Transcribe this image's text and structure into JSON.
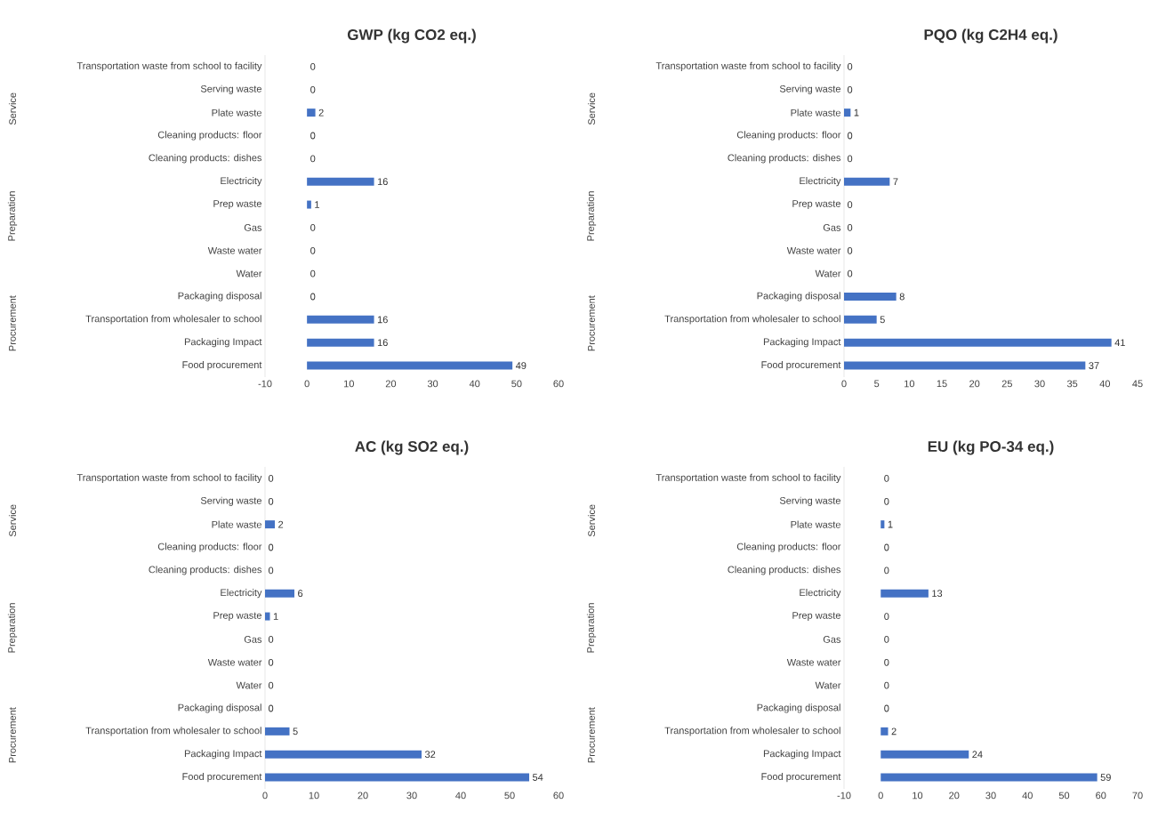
{
  "chart_data": [
    {
      "type": "bar",
      "orientation": "horizontal",
      "title": "GWP (kg CO2 eq.)",
      "categories": [
        "Transportation waste from school to facility",
        "Serving waste",
        "Plate waste",
        "Cleaning products: floor",
        "Cleaning products: dishes",
        "Electricity",
        "Prep waste",
        "Gas",
        "Waste water",
        "Water",
        "Packaging disposal",
        "Transportation from wholesaler to school",
        "Packaging Impact",
        "Food procurement"
      ],
      "values": [
        0,
        0,
        2,
        0,
        0,
        16,
        1,
        0,
        0,
        0,
        0,
        16,
        16,
        49
      ],
      "color": "#4472c4",
      "data_labels": true,
      "xlim": [
        -10,
        60
      ],
      "xticks": [
        -10,
        0,
        10,
        20,
        30,
        40,
        50,
        60
      ],
      "grid": false,
      "annotations": [
        "Service",
        "Preparation",
        "Procurement"
      ]
    },
    {
      "type": "bar",
      "orientation": "horizontal",
      "title": "PQO (kg C2H4 eq.)",
      "categories": [
        "Transportation waste from school to facility",
        "Serving waste",
        "Plate waste",
        "Cleaning products: floor",
        "Cleaning products: dishes",
        "Electricity",
        "Prep waste",
        "Gas",
        "Waste water",
        "Water",
        "Packaging disposal",
        "Transportation from wholesaler to school",
        "Packaging Impact",
        "Food procurement"
      ],
      "values": [
        0,
        0,
        1,
        0,
        0,
        7,
        0,
        0,
        0,
        0,
        8,
        5,
        41,
        37
      ],
      "color": "#4472c4",
      "data_labels": true,
      "xlim": [
        0,
        45
      ],
      "xticks": [
        0,
        5,
        10,
        15,
        20,
        25,
        30,
        35,
        40,
        45
      ],
      "grid": false,
      "annotations": [
        "Service",
        "Preparation",
        "Procurement"
      ]
    },
    {
      "type": "bar",
      "orientation": "horizontal",
      "title": "AC (kg SO2 eq.)",
      "categories": [
        "Transportation waste from school to facility",
        "Serving waste",
        "Plate waste",
        "Cleaning products: floor",
        "Cleaning products: dishes",
        "Electricity",
        "Prep waste",
        "Gas",
        "Waste water",
        "Water",
        "Packaging disposal",
        "Transportation from wholesaler to school",
        "Packaging Impact",
        "Food procurement"
      ],
      "values": [
        0,
        0,
        2,
        0,
        0,
        6,
        1,
        0,
        0,
        0,
        0,
        5,
        32,
        54
      ],
      "color": "#4472c4",
      "data_labels": true,
      "xlim": [
        0,
        60
      ],
      "xticks": [
        0,
        10,
        20,
        30,
        40,
        50,
        60
      ],
      "grid": false,
      "annotations": [
        "Service",
        "Preparation",
        "Procurement"
      ]
    },
    {
      "type": "bar",
      "orientation": "horizontal",
      "title": "EU (kg PO-34 eq.)",
      "categories": [
        "Transportation waste from school to facility",
        "Serving waste",
        "Plate waste",
        "Cleaning products: floor",
        "Cleaning products: dishes",
        "Electricity",
        "Prep waste",
        "Gas",
        "Waste water",
        "Water",
        "Packaging disposal",
        "Transportation from wholesaler to school",
        "Packaging Impact",
        "Food procurement"
      ],
      "values": [
        0,
        0,
        1,
        0,
        0,
        13,
        0,
        0,
        0,
        0,
        0,
        2,
        24,
        59
      ],
      "color": "#4472c4",
      "data_labels": true,
      "xlim": [
        -10,
        70
      ],
      "xticks": [
        -10,
        0,
        10,
        20,
        30,
        40,
        50,
        60,
        70
      ],
      "grid": false,
      "annotations": [
        "Service",
        "Preparation",
        "Procurement"
      ]
    }
  ]
}
